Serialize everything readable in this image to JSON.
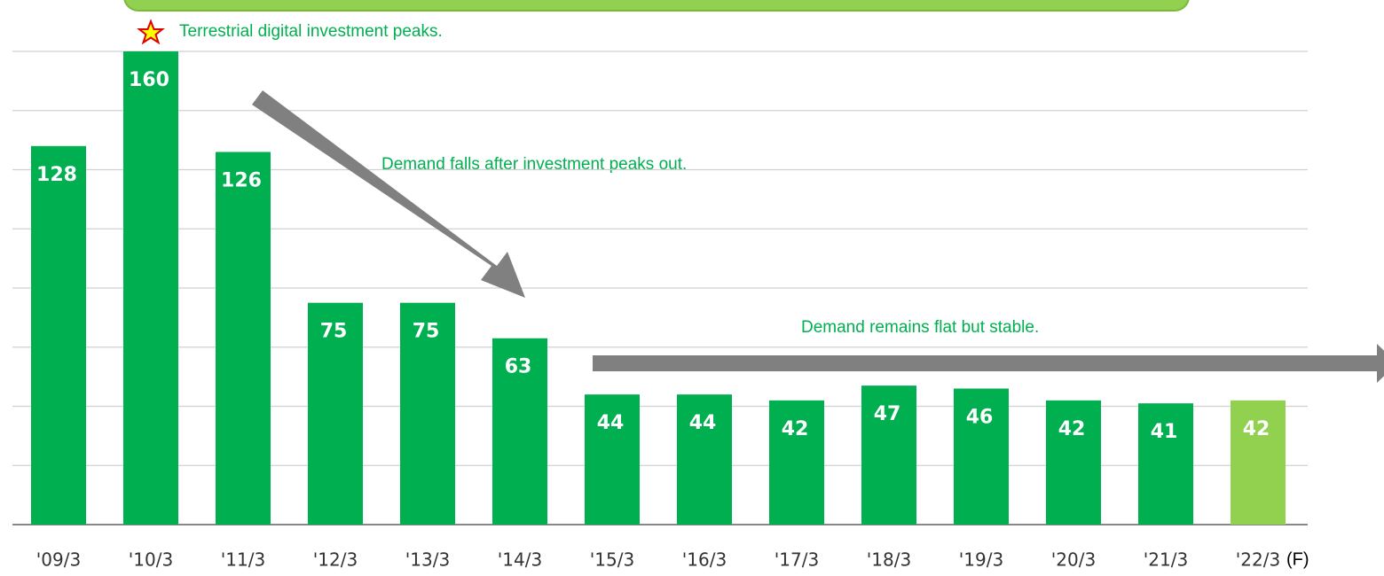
{
  "chart_data": {
    "type": "bar",
    "categories": [
      "'09/3",
      "'10/3",
      "'11/3",
      "'12/3",
      "'13/3",
      "'14/3",
      "'15/3",
      "'16/3",
      "'17/3",
      "'18/3",
      "'19/3",
      "'20/3",
      "'21/3",
      "'22/3"
    ],
    "values": [
      128,
      160,
      126,
      75,
      75,
      63,
      44,
      44,
      42,
      47,
      46,
      42,
      41,
      42
    ],
    "colors": [
      "#00b050",
      "#00b050",
      "#00b050",
      "#00b050",
      "#00b050",
      "#00b050",
      "#00b050",
      "#00b050",
      "#00b050",
      "#00b050",
      "#00b050",
      "#00b050",
      "#00b050",
      "#92d050"
    ],
    "forecast_mark": "(F)",
    "ylim": [
      0,
      160
    ],
    "yticks": [
      0,
      20,
      40,
      60,
      80,
      100,
      120,
      140,
      160
    ],
    "grid": true,
    "annotations": [
      "Terrestrial digital investment peaks.",
      "Demand falls after investment peaks out.",
      "Demand remains flat but stable."
    ]
  }
}
